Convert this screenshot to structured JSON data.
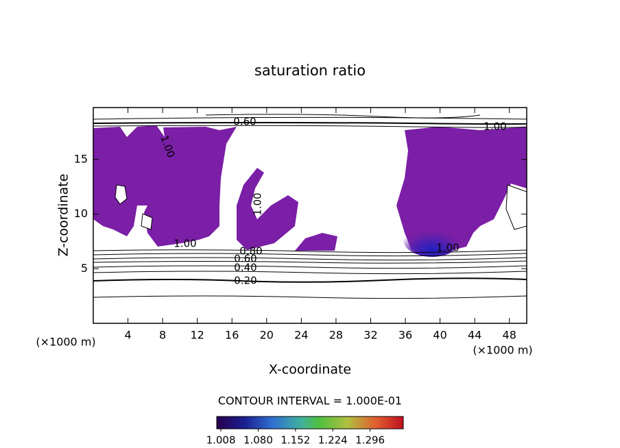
{
  "chart_data": {
    "type": "contour",
    "title": "saturation ratio",
    "xlabel": "X-coordinate",
    "ylabel": "Z-coordinate",
    "x_units": "(×1000 m)",
    "y_units": "(×1000 m)",
    "xlim": [
      0,
      50
    ],
    "xticks": [
      4,
      8,
      12,
      16,
      20,
      24,
      28,
      32,
      36,
      40,
      44,
      48
    ],
    "ylim": [
      0,
      19.75
    ],
    "yticks": [
      5,
      10,
      15
    ],
    "fill_color": "#7a1fa6",
    "contour_labels": [
      {
        "value": 0.2,
        "label": "0.20"
      },
      {
        "value": 0.4,
        "label": "0.40"
      },
      {
        "value": 0.6,
        "label": "0.60"
      },
      {
        "value": 0.8,
        "label": "0.80"
      },
      {
        "value": 1.0,
        "label": "1.00"
      },
      {
        "value": 1.0,
        "label": "1.00"
      },
      {
        "value": 1.0,
        "label": "1.00"
      },
      {
        "value": 1.0,
        "label": "1.00"
      },
      {
        "value": 0.6,
        "label": "0.60"
      },
      {
        "value": 1.0,
        "label": "1.00"
      }
    ],
    "contour_interval": "CONTOUR INTERVAL = 1.000E-01",
    "colorbar": {
      "clim": [
        1.0,
        1.36
      ],
      "ticks": [
        {
          "value": 1.008,
          "label": "1.008"
        },
        {
          "value": 1.08,
          "label": "1.080"
        },
        {
          "value": 1.152,
          "label": "1.152"
        },
        {
          "value": 1.224,
          "label": "1.224"
        },
        {
          "value": 1.296,
          "label": "1.296"
        }
      ]
    }
  }
}
